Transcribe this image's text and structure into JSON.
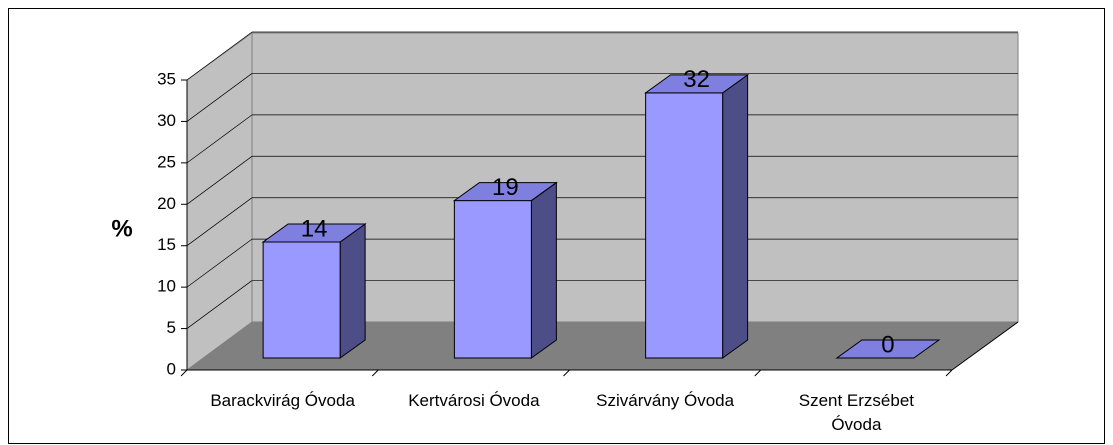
{
  "chart_data": {
    "type": "bar3d",
    "y_label": "%",
    "categories": [
      "Barackvirág Óvoda",
      "Kertvárosi Óvoda",
      "Szivárvány Óvoda",
      "Szent Erzsébet Óvoda"
    ],
    "values": [
      14,
      19,
      32,
      0
    ],
    "color": "#9999ff",
    "ylim": [
      0,
      35
    ],
    "yticks": [
      0,
      5,
      10,
      15,
      20,
      25,
      30,
      35
    ],
    "grid": true
  }
}
